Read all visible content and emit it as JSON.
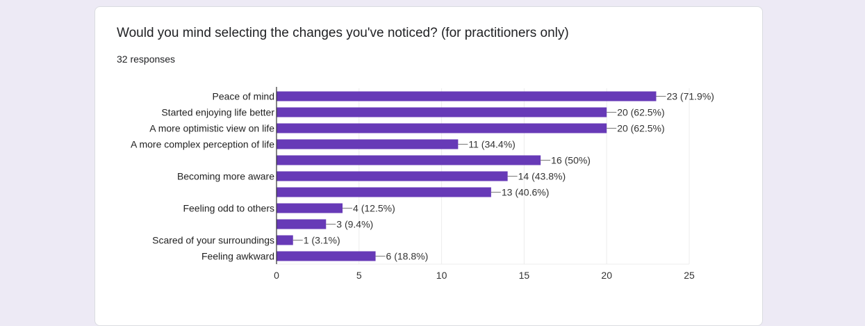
{
  "question": {
    "title": "Would you mind selecting the changes you've noticed? (for practitioners only)",
    "responses_text": "32 responses"
  },
  "colors": {
    "bar": "#673ab7",
    "grid": "#ececec",
    "axis": "#333333",
    "text": "#222222",
    "label_text": "#333333"
  },
  "chart_data": {
    "type": "bar",
    "orientation": "horizontal",
    "categories": [
      "Peace of mind",
      "Started enjoying life better",
      "A more optimistic view on life",
      "A more complex perception of life",
      "",
      "Becoming more aware",
      "",
      "Feeling odd to others",
      "",
      "Scared of your surroundings",
      "Feeling awkward"
    ],
    "values": [
      23,
      20,
      20,
      11,
      16,
      14,
      13,
      4,
      3,
      1,
      6
    ],
    "value_labels": [
      "23 (71.9%)",
      "20 (62.5%)",
      "20 (62.5%)",
      "11 (34.4%)",
      "16 (50%)",
      "14 (43.8%)",
      "13 (40.6%)",
      "4 (12.5%)",
      "3 (9.4%)",
      "1 (3.1%)",
      "6 (18.8%)"
    ],
    "xlim": [
      0,
      25
    ],
    "xticks": [
      0,
      5,
      10,
      15,
      20,
      25
    ],
    "grid": true
  }
}
